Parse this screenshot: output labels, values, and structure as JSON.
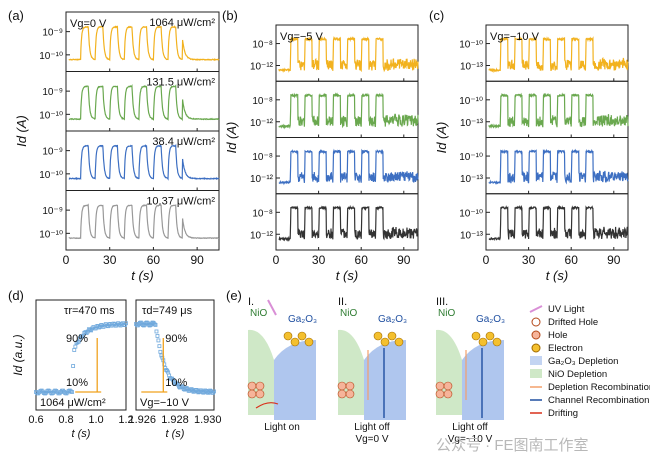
{
  "panel_labels": {
    "a": "(a)",
    "b": "(b)",
    "c": "(c)",
    "d": "(d)",
    "e": "(e)"
  },
  "colors": {
    "yellow": "#f2b21f",
    "green": "#6aa84f",
    "blue": "#3d6fc2",
    "gray": "#999999",
    "dark": "#333333",
    "d_fit": "#f0a21e",
    "d_data": "#6fa8dc",
    "red": "#d9301b",
    "orange": "#f3a06a",
    "navy": "#1f4fa0",
    "pink": "#d98fd6",
    "nio": "#cfe8c7",
    "ga2o3": "#9bb8ea"
  },
  "chart_data": [
    {
      "id": "a",
      "type": "line",
      "x_tick_labels": [
        "0",
        "30",
        "60",
        "90"
      ],
      "xlabel": "t (s)",
      "ylabel": "Id (A)",
      "xlim": [
        0,
        105
      ],
      "annotation": "Vg=0 V",
      "cycle": {
        "period_s": 10,
        "on_s": [
          [
            10,
            15
          ],
          [
            20,
            25
          ],
          [
            30,
            35
          ],
          [
            40,
            45
          ],
          [
            50,
            55
          ],
          [
            60,
            65
          ],
          [
            70,
            75
          ]
        ],
        "light_off_after_s": 76
      },
      "series": [
        {
          "intensity": "1064 μW/cm²",
          "color": "yellow",
          "y_tick_labels": [
            "10⁻⁹",
            "10⁻¹⁰"
          ]
        },
        {
          "intensity": "131.5 μW/cm²",
          "color": "green",
          "y_tick_labels": [
            "10⁻⁹",
            "10⁻¹⁰"
          ]
        },
        {
          "intensity": "38.4 μW/cm²",
          "color": "blue",
          "y_tick_labels": [
            "10⁻⁹",
            "10⁻¹⁰"
          ]
        },
        {
          "intensity": "10.37 μW/cm²",
          "color": "gray",
          "y_tick_labels": [
            "10⁻⁹",
            "10⁻¹⁰"
          ]
        }
      ]
    },
    {
      "id": "b",
      "type": "line",
      "x_tick_labels": [
        "0",
        "30",
        "60",
        "90"
      ],
      "xlabel": "t (s)",
      "ylabel": "Id (A)",
      "xlim": [
        0,
        100
      ],
      "annotation": "Vg=−5 V",
      "series": [
        {
          "color": "yellow",
          "y_tick_labels": [
            "10⁻⁸",
            "10⁻¹²"
          ]
        },
        {
          "color": "green",
          "y_tick_labels": [
            "10⁻⁸",
            "10⁻¹²"
          ]
        },
        {
          "color": "blue",
          "y_tick_labels": [
            "10⁻⁸",
            "10⁻¹²"
          ]
        },
        {
          "color": "dark",
          "y_tick_labels": [
            "10⁻⁸",
            "10⁻¹²"
          ]
        }
      ]
    },
    {
      "id": "c",
      "type": "line",
      "x_tick_labels": [
        "0",
        "30",
        "60",
        "90"
      ],
      "xlabel": "t (s)",
      "ylabel": "Id (A)",
      "xlim": [
        0,
        100
      ],
      "annotation": "Vg=−10 V",
      "series": [
        {
          "color": "yellow",
          "y_tick_labels": [
            "10⁻¹⁰",
            "10⁻¹³"
          ]
        },
        {
          "color": "green",
          "y_tick_labels": [
            "10⁻¹⁰",
            "10⁻¹³"
          ]
        },
        {
          "color": "blue",
          "y_tick_labels": [
            "10⁻¹⁰",
            "10⁻¹³"
          ]
        },
        {
          "color": "dark",
          "y_tick_labels": [
            "10⁻¹⁰",
            "10⁻¹³"
          ]
        }
      ]
    },
    {
      "id": "d",
      "type": "scatter",
      "ylabel": "Id (a.u.)",
      "left": {
        "xlabel": "t (s)",
        "x_tick_labels": [
          "0.6",
          "0.8",
          "1.0",
          "1.2"
        ],
        "xlim": [
          0.6,
          1.2
        ],
        "tau_label": "τr=470 ms",
        "marker_90": "90%",
        "marker_10": "10%",
        "note": "1064 μW/cm²",
        "rise_start_s": 0.85
      },
      "right": {
        "xlabel": "t (s)",
        "x_tick_labels": [
          "1.926",
          "1.928",
          "1.930"
        ],
        "xlim": [
          1.9255,
          1.9305
        ],
        "tau_label": "τd=749 μs",
        "marker_90": "90%",
        "marker_10": "10%",
        "note": "Vg=−10 V",
        "decay_start_s": 1.9266
      }
    }
  ],
  "schematic": {
    "stages": [
      {
        "roman": "I.",
        "nio": "NiO",
        "ga2o3": "Ga₂O₃",
        "caption": [
          "Light on"
        ]
      },
      {
        "roman": "II.",
        "nio": "NiO",
        "ga2o3": "Ga₂O₃",
        "caption": [
          "Light off",
          "Vg=0 V"
        ]
      },
      {
        "roman": "III.",
        "nio": "NiO",
        "ga2o3": "Ga₂O₃",
        "caption": [
          "Light off",
          "Vg=−10 V"
        ]
      }
    ],
    "legend": [
      "UV Light",
      "Drifted Hole",
      "Hole",
      "Electron",
      "Ga₂O₃ Depletion",
      "NiO Depletion",
      "Depletion Recombination",
      "Channel Recombination",
      "Drifting"
    ]
  },
  "watermark": "公众号 · FE图南工作室"
}
